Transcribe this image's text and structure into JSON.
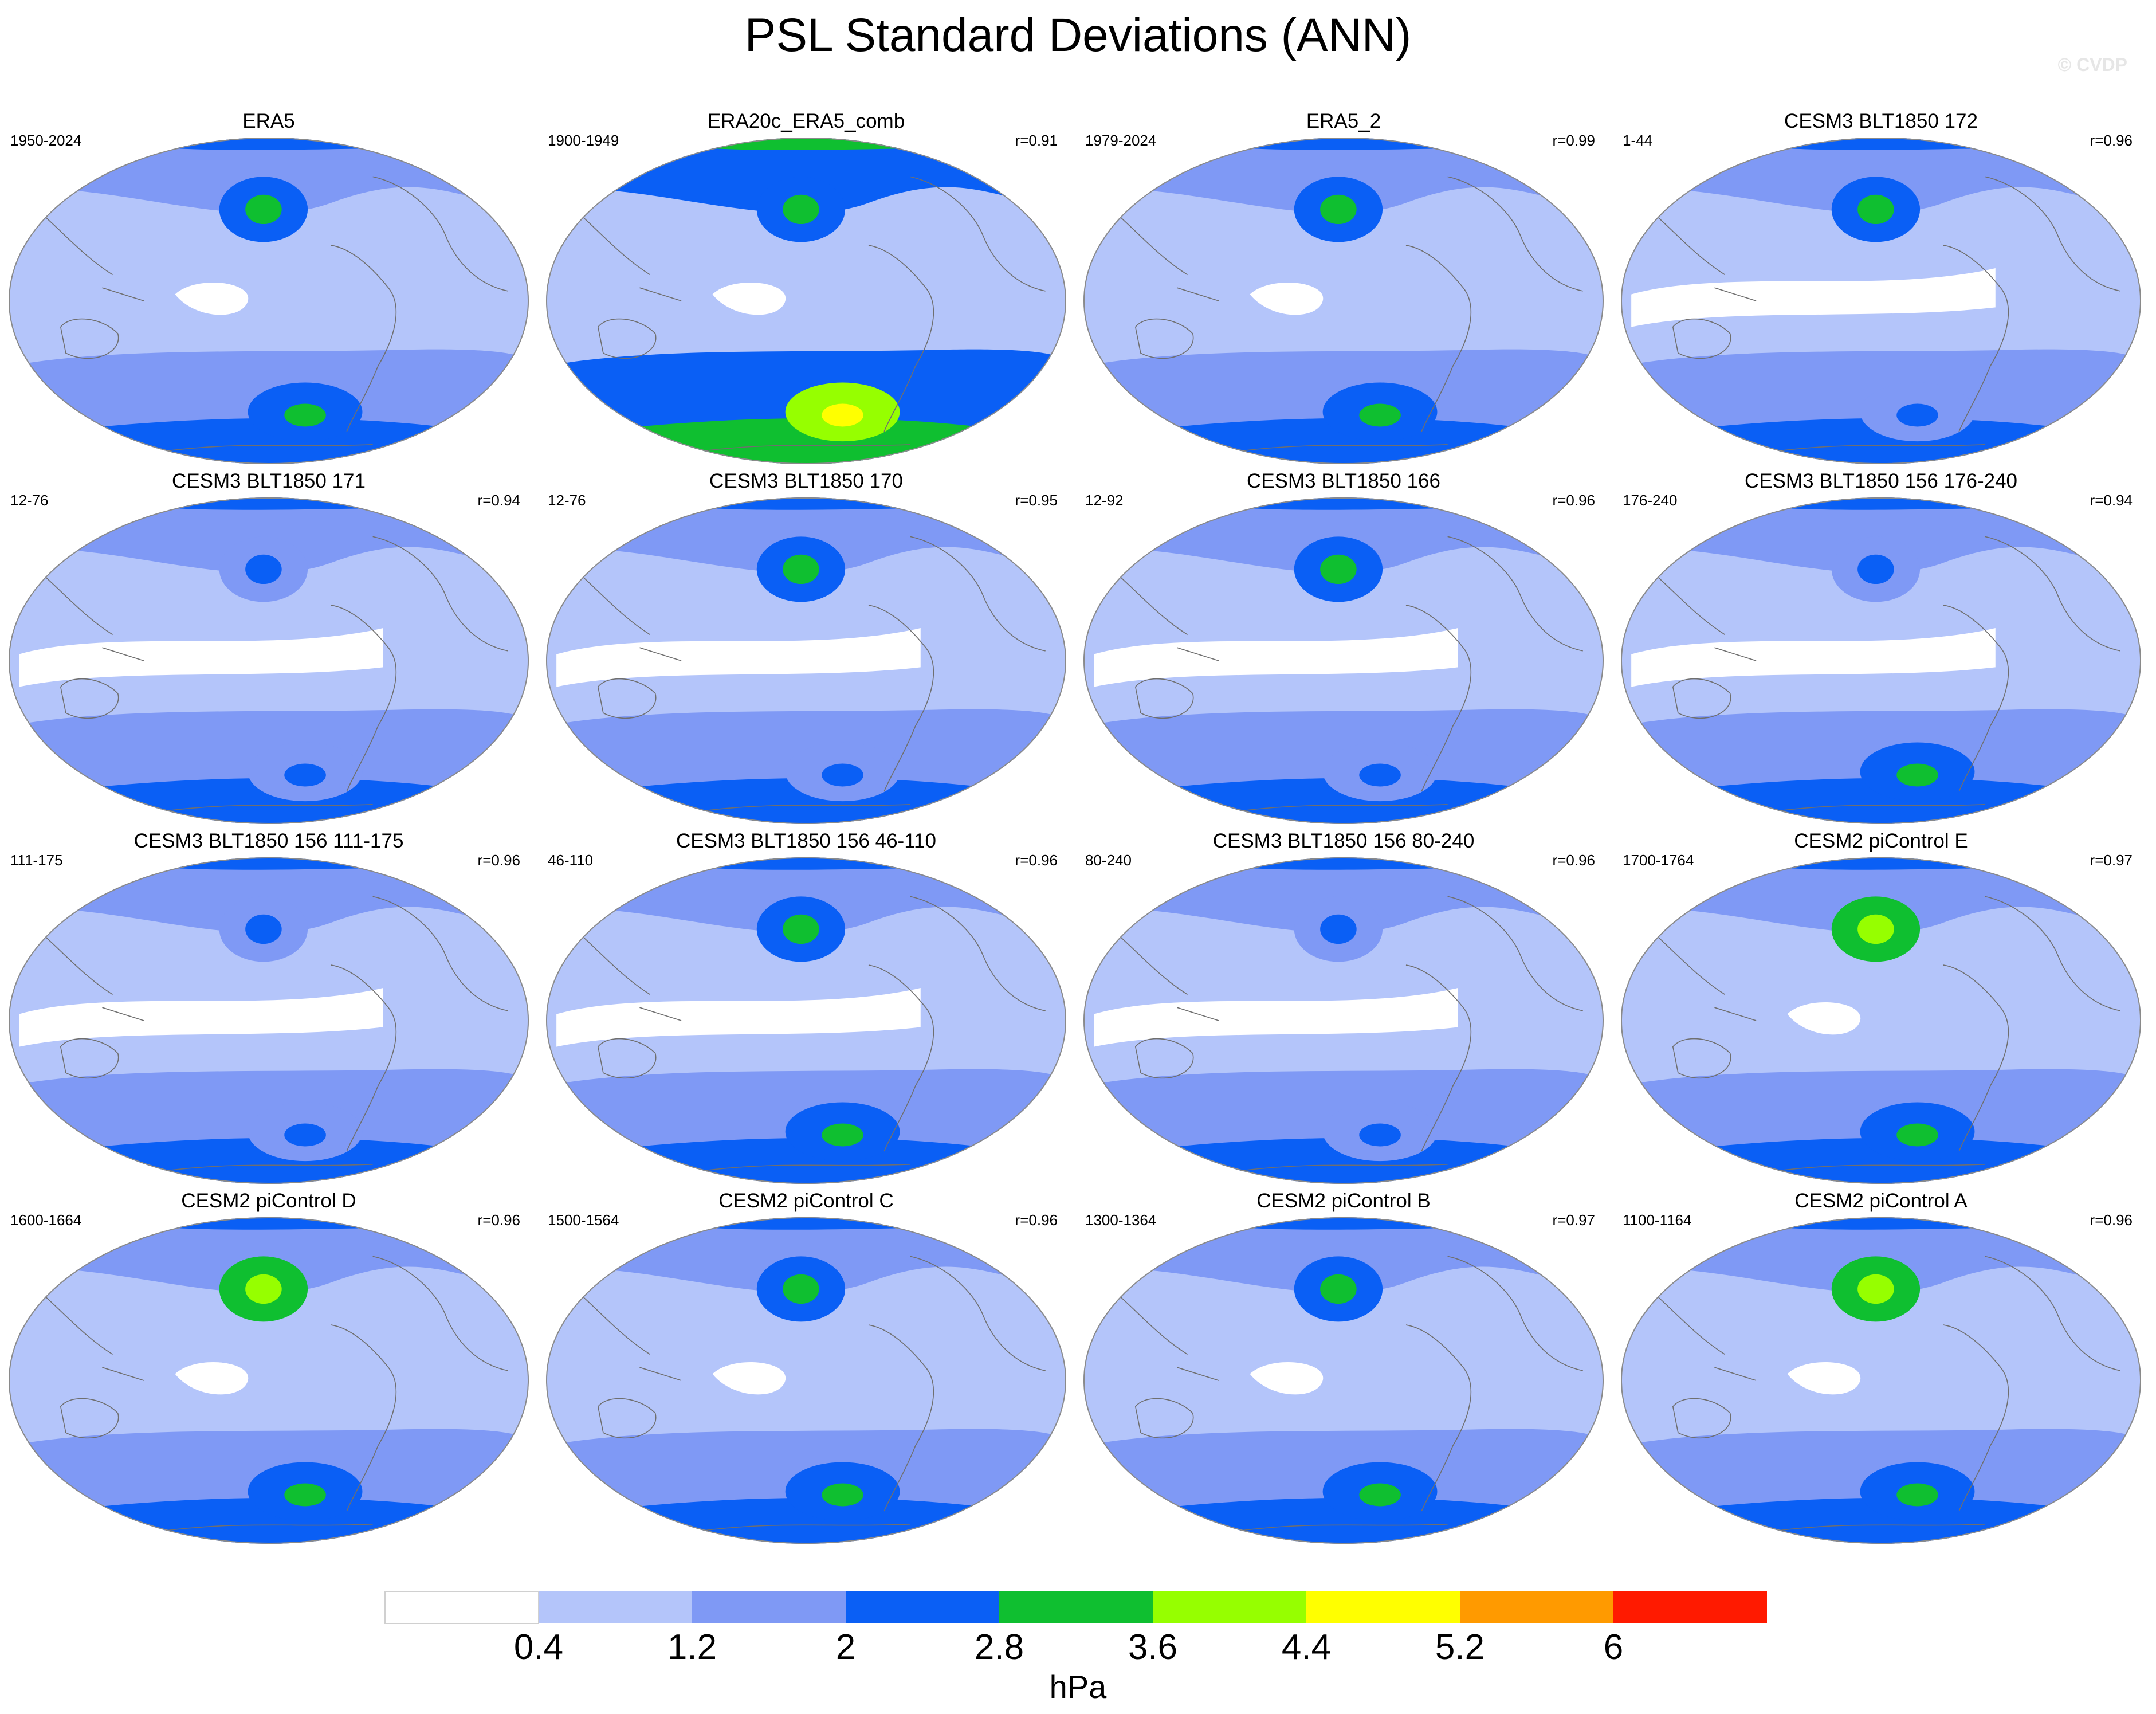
{
  "figure": {
    "title": "PSL Standard Deviations (ANN)",
    "watermark": "© CVDP",
    "colorbar_unit": "hPa"
  },
  "colors": {
    "level_fills": [
      "#ffffff",
      "#b4c5fa",
      "#7f99f5",
      "#0a5ff5",
      "#0fbf30",
      "#96ff00",
      "#ffff00",
      "#ff9a00",
      "#ff1a00"
    ],
    "coastline": "#6f6f6f",
    "map_border": "#8a8a8a"
  },
  "colorbar": {
    "levels": [
      "0.4",
      "1.2",
      "2",
      "2.8",
      "3.6",
      "4.4",
      "5.2",
      "6"
    ]
  },
  "panels": [
    {
      "title": "ERA5",
      "years": "1950-2024",
      "r": "",
      "sig": {
        "np": 2,
        "sp": 3,
        "sh": 2,
        "band": 1,
        "tropics": 1
      }
    },
    {
      "title": "ERA20c_ERA5_comb",
      "years": "1900-1949",
      "r": "r=0.91",
      "sig": {
        "np": 2,
        "sp": 5,
        "sh": 3,
        "band": 2,
        "tropics": 1
      }
    },
    {
      "title": "ERA5_2",
      "years": "1979-2024",
      "r": "r=0.99",
      "sig": {
        "np": 2,
        "sp": 3,
        "sh": 2,
        "band": 1,
        "tropics": 1
      }
    },
    {
      "title": "CESM3 BLT1850 172",
      "years": "1-44",
      "r": "r=0.96",
      "sig": {
        "np": 2,
        "sp": 2,
        "sh": 2,
        "band": 1,
        "tropics": 0
      }
    },
    {
      "title": "CESM3 BLT1850 171",
      "years": "12-76",
      "r": "r=0.94",
      "sig": {
        "np": 1,
        "sp": 2,
        "sh": 2,
        "band": 1,
        "tropics": 0
      }
    },
    {
      "title": "CESM3 BLT1850 170",
      "years": "12-76",
      "r": "r=0.95",
      "sig": {
        "np": 2,
        "sp": 2,
        "sh": 2,
        "band": 1,
        "tropics": 0
      }
    },
    {
      "title": "CESM3 BLT1850 166",
      "years": "12-92",
      "r": "r=0.96",
      "sig": {
        "np": 2,
        "sp": 2,
        "sh": 2,
        "band": 1,
        "tropics": 0
      }
    },
    {
      "title": "CESM3 BLT1850 156 176-240",
      "years": "176-240",
      "r": "r=0.94",
      "sig": {
        "np": 1,
        "sp": 3,
        "sh": 2,
        "band": 1,
        "tropics": 0
      }
    },
    {
      "title": "CESM3 BLT1850 156 111-175",
      "years": "111-175",
      "r": "r=0.96",
      "sig": {
        "np": 1,
        "sp": 2,
        "sh": 2,
        "band": 1,
        "tropics": 0
      }
    },
    {
      "title": "CESM3 BLT1850 156 46-110",
      "years": "46-110",
      "r": "r=0.96",
      "sig": {
        "np": 2,
        "sp": 3,
        "sh": 2,
        "band": 1,
        "tropics": 0
      }
    },
    {
      "title": "CESM3 BLT1850 156 80-240",
      "years": "80-240",
      "r": "r=0.96",
      "sig": {
        "np": 1,
        "sp": 2,
        "sh": 2,
        "band": 1,
        "tropics": 0
      }
    },
    {
      "title": "CESM2 piControl E",
      "years": "1700-1764",
      "r": "r=0.97",
      "sig": {
        "np": 3,
        "sp": 3,
        "sh": 2,
        "band": 1,
        "tropics": 1
      }
    },
    {
      "title": "CESM2 piControl D",
      "years": "1600-1664",
      "r": "r=0.96",
      "sig": {
        "np": 3,
        "sp": 3,
        "sh": 2,
        "band": 1,
        "tropics": 1
      }
    },
    {
      "title": "CESM2 piControl C",
      "years": "1500-1564",
      "r": "r=0.96",
      "sig": {
        "np": 2,
        "sp": 3,
        "sh": 2,
        "band": 1,
        "tropics": 1
      }
    },
    {
      "title": "CESM2 piControl B",
      "years": "1300-1364",
      "r": "r=0.97",
      "sig": {
        "np": 2,
        "sp": 3,
        "sh": 2,
        "band": 1,
        "tropics": 1
      }
    },
    {
      "title": "CESM2 piControl A",
      "years": "1100-1164",
      "r": "r=0.96",
      "sig": {
        "np": 3,
        "sp": 3,
        "sh": 2,
        "band": 1,
        "tropics": 1
      }
    }
  ]
}
